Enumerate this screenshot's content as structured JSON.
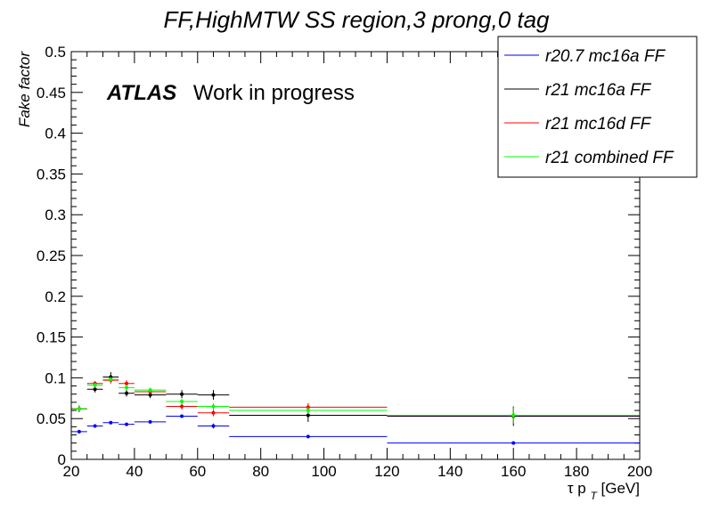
{
  "chart_data": {
    "type": "scatter",
    "title": "FF,HighMTW SS region,3 prong,0 tag",
    "xlabel": "τ p_T[GeV]",
    "xlabel_main": "τ p",
    "xlabel_sub": "T",
    "xlabel_unit": "[GeV]",
    "ylabel": "Fake factor",
    "xlim": [
      20,
      200
    ],
    "ylim": [
      0,
      0.5
    ],
    "x_ticks": [
      20,
      40,
      60,
      80,
      100,
      120,
      140,
      160,
      180,
      200
    ],
    "x_tick_labels": [
      "20",
      "40",
      "60",
      "80",
      "100",
      "120",
      "140",
      "160",
      "180",
      "200"
    ],
    "y_ticks": [
      0,
      0.05,
      0.1,
      0.15,
      0.2,
      0.25,
      0.3,
      0.35,
      0.4,
      0.45,
      0.5
    ],
    "y_tick_labels": [
      "0",
      "0.05",
      "0.1",
      "0.15",
      "0.2",
      "0.25",
      "0.3",
      "0.35",
      "0.4",
      "0.45",
      "0.5"
    ],
    "grid": false,
    "legend_position": "top-right",
    "annotation": {
      "bold": "ATLAS",
      "normal": "Work in progress"
    },
    "bins": [
      [
        20,
        25
      ],
      [
        25,
        30
      ],
      [
        30,
        35
      ],
      [
        35,
        40
      ],
      [
        40,
        50
      ],
      [
        50,
        60
      ],
      [
        60,
        70
      ],
      [
        70,
        120
      ],
      [
        120,
        200
      ]
    ],
    "series": [
      {
        "name": "r20.7 mc16a FF",
        "color": "#0000ff",
        "values": [
          0.034,
          0.041,
          0.045,
          0.043,
          0.046,
          0.053,
          0.041,
          0.028,
          0.02
        ],
        "errors": [
          0.002,
          0.002,
          0.002,
          0.002,
          0.002,
          0.002,
          0.003,
          0.002,
          0.002
        ]
      },
      {
        "name": "r21 mc16a FF",
        "color": "#000000",
        "values": [
          0.062,
          0.086,
          0.101,
          0.081,
          0.079,
          0.08,
          0.079,
          0.054,
          0.053
        ],
        "errors": [
          0.004,
          0.004,
          0.006,
          0.004,
          0.004,
          0.005,
          0.006,
          0.008,
          0.012
        ]
      },
      {
        "name": "r21 mc16d FF",
        "color": "#ff0000",
        "values": [
          0.062,
          0.093,
          0.097,
          0.093,
          0.083,
          0.065,
          0.057,
          0.064,
          0.054
        ],
        "errors": [
          0.003,
          0.003,
          0.004,
          0.004,
          0.003,
          0.004,
          0.004,
          0.005,
          0.01
        ]
      },
      {
        "name": "r21 combined FF",
        "color": "#00ff00",
        "values": [
          0.062,
          0.091,
          0.098,
          0.088,
          0.085,
          0.071,
          0.065,
          0.06,
          0.054
        ],
        "errors": [
          0.003,
          0.003,
          0.003,
          0.003,
          0.003,
          0.003,
          0.004,
          0.004,
          0.01
        ]
      }
    ]
  }
}
